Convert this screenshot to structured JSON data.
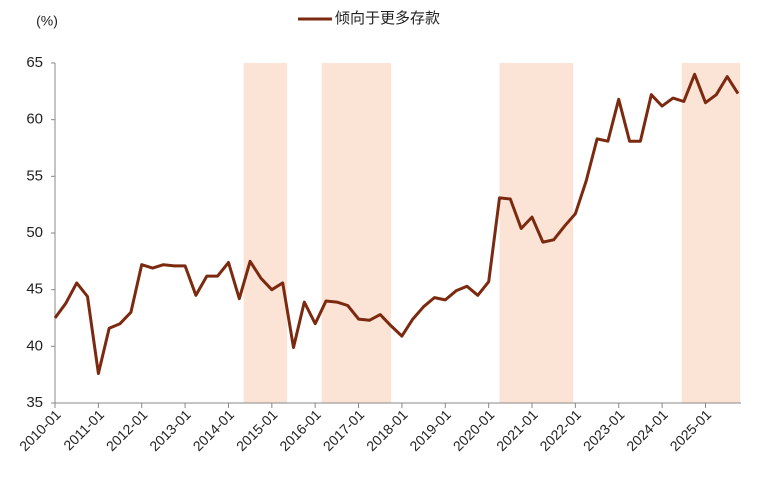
{
  "chart_data": {
    "type": "line",
    "y_label": "(%)",
    "categories": [
      "2010-01",
      null,
      null,
      null,
      "2011-01",
      null,
      null,
      null,
      "2012-01",
      null,
      null,
      null,
      "2013-01",
      null,
      null,
      null,
      "2014-01",
      null,
      null,
      null,
      "2015-01",
      null,
      null,
      null,
      "2016-01",
      null,
      null,
      null,
      "2017-01",
      null,
      null,
      null,
      "2018-01",
      null,
      null,
      null,
      "2019-01",
      null,
      null,
      null,
      "2020-01",
      null,
      null,
      null,
      "2021-01",
      null,
      null,
      null,
      "2022-01",
      null,
      null,
      null,
      "2023-01",
      null,
      null,
      null,
      "2024-01",
      null,
      null,
      null,
      "2025-01",
      null,
      null,
      null
    ],
    "series": [
      {
        "name": "倾向于更多存款",
        "color": "#7b2a10",
        "values": [
          42.5,
          43.8,
          45.6,
          44.4,
          37.6,
          41.6,
          42.0,
          43.0,
          47.2,
          46.9,
          47.2,
          47.1,
          47.1,
          44.5,
          46.2,
          46.2,
          47.4,
          44.2,
          47.5,
          46.0,
          45.0,
          45.6,
          39.9,
          43.9,
          42.0,
          44.0,
          43.9,
          43.6,
          42.4,
          42.3,
          42.8,
          41.8,
          40.9,
          42.4,
          43.5,
          44.3,
          44.1,
          44.9,
          45.3,
          44.5,
          45.7,
          53.1,
          53.0,
          50.4,
          51.4,
          49.2,
          49.4,
          50.6,
          51.7,
          54.6,
          58.3,
          58.1,
          61.8,
          58.1,
          58.1,
          62.2,
          61.2,
          61.9,
          61.6,
          64.0,
          61.5,
          62.2,
          63.8,
          62.3
        ]
      }
    ],
    "shaded_spans": [
      [
        17.4,
        21.4
      ],
      [
        24.6,
        31.0
      ],
      [
        41.0,
        47.8
      ],
      [
        57.8,
        63.2
      ]
    ],
    "shade_color": "#fbe3d6",
    "ylim": [
      35,
      65
    ],
    "yticks": [
      35,
      40,
      45,
      50,
      55,
      60,
      65
    ],
    "grid": false,
    "legend": "top"
  }
}
